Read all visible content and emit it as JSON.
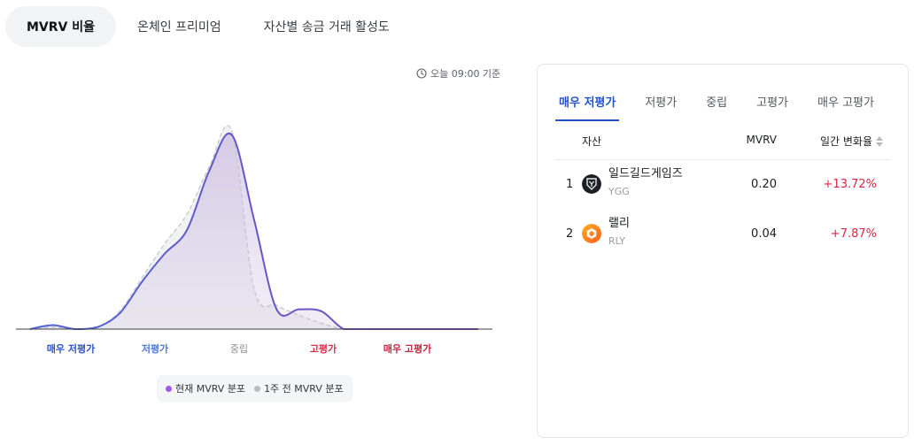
{
  "top_tabs": [
    {
      "label": "MVRV 비율",
      "active": true
    },
    {
      "label": "온체인 프리미엄",
      "active": false
    },
    {
      "label": "자산별 송금 거래 활성도",
      "active": false
    }
  ],
  "as_of": "오늘 09:00 기준",
  "zones": [
    "매우 저평가",
    "저평가",
    "중립",
    "고평가",
    "매우 고평가"
  ],
  "legend": {
    "current": "현재 MVRV 분포",
    "previous": "1주 전 MVRV 분포"
  },
  "colors": {
    "current": "#7f4fb8",
    "current_dot": "#9b59e6",
    "previous": "#b8bbc2",
    "accent": "#2352c8",
    "positive": "#e0223e"
  },
  "panel": {
    "tabs": [
      {
        "label": "매우 저평가",
        "active": true
      },
      {
        "label": "저평가",
        "active": false
      },
      {
        "label": "중립",
        "active": false
      },
      {
        "label": "고평가",
        "active": false
      },
      {
        "label": "매우 고평가",
        "active": false
      }
    ],
    "columns": {
      "asset": "자산",
      "mvrv": "MVRV",
      "change": "일간 변화율"
    },
    "rows": [
      {
        "rank": "1",
        "name": "일드길드게임즈",
        "symbol": "YGG",
        "mvrv": "0.20",
        "change": "+13.72%",
        "icon": "ygg-logo-icon"
      },
      {
        "rank": "2",
        "name": "랠리",
        "symbol": "RLY",
        "mvrv": "0.04",
        "change": "+7.87%",
        "icon": "rly-logo-icon"
      }
    ]
  },
  "chart_data": {
    "type": "area",
    "x": [
      0,
      0.05,
      0.1,
      0.15,
      0.2,
      0.25,
      0.3,
      0.35,
      0.4,
      0.45,
      0.5,
      0.55,
      0.6,
      0.65,
      0.7,
      0.75,
      0.8,
      0.85,
      0.9,
      0.95,
      1.0
    ],
    "series": [
      {
        "name": "현재 MVRV 분포",
        "values": [
          0.0,
          0.02,
          0.0,
          0.01,
          0.08,
          0.24,
          0.38,
          0.5,
          0.8,
          0.98,
          0.55,
          0.1,
          0.1,
          0.09,
          0.0,
          0.0,
          0.0,
          0.0,
          0.0,
          0.0,
          0.0
        ]
      },
      {
        "name": "1주 전 MVRV 분포",
        "values": [
          0.0,
          0.01,
          0.0,
          0.01,
          0.09,
          0.26,
          0.43,
          0.58,
          0.82,
          1.0,
          0.2,
          0.12,
          0.07,
          0.03,
          0.0,
          0.0,
          0.0,
          0.0,
          0.0,
          0.0,
          0.0
        ]
      }
    ],
    "xlabel": "",
    "ylabel": "",
    "categories": [
      "매우 저평가",
      "저평가",
      "중립",
      "고평가",
      "매우 고평가"
    ],
    "grid": false,
    "legend": "bottom"
  }
}
